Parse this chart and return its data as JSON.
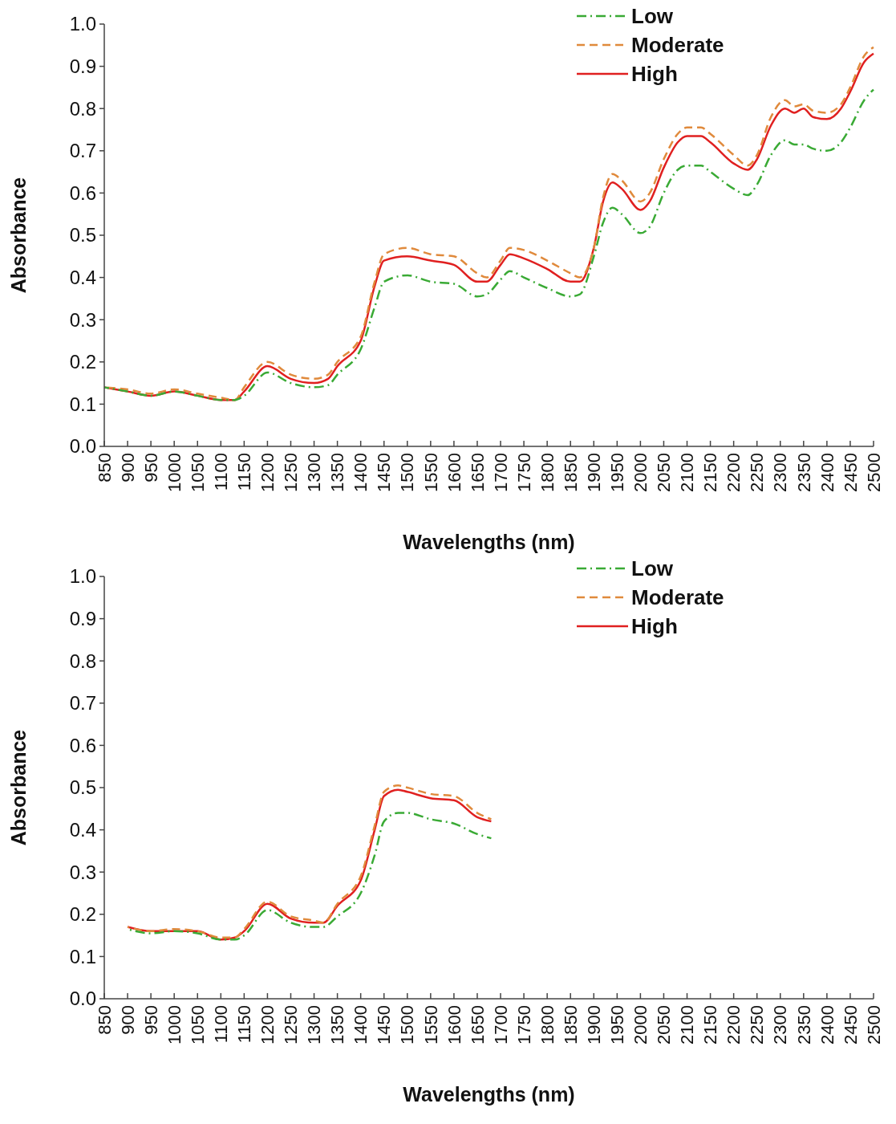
{
  "chart_data": [
    {
      "type": "line",
      "xlabel": "Wavelengths (nm)",
      "ylabel": "Absorbance",
      "xlim": [
        850,
        2500
      ],
      "ylim": [
        0,
        1
      ],
      "xticks": [
        850,
        900,
        950,
        1000,
        1050,
        1100,
        1150,
        1200,
        1250,
        1300,
        1350,
        1400,
        1450,
        1500,
        1550,
        1600,
        1650,
        1700,
        1750,
        1800,
        1850,
        1900,
        1950,
        2000,
        2050,
        2100,
        2150,
        2200,
        2250,
        2300,
        2350,
        2400,
        2450,
        2500
      ],
      "yticks": [
        {
          "value": 0,
          "label": "0.0"
        },
        {
          "value": 0.1,
          "label": "0.1"
        },
        {
          "value": 0.2,
          "label": "0.2"
        },
        {
          "value": 0.3,
          "label": "0.3"
        },
        {
          "value": 0.4,
          "label": "0.4"
        },
        {
          "value": 0.5,
          "label": "0.5"
        },
        {
          "value": 0.6,
          "label": "0.6"
        },
        {
          "value": 0.7,
          "label": "0.7"
        },
        {
          "value": 0.8,
          "label": "0.8"
        },
        {
          "value": 0.9,
          "label": "0.9"
        },
        {
          "value": 1,
          "label": "1.0"
        }
      ],
      "grid": false,
      "legend": "top right",
      "x": [
        850,
        900,
        950,
        1000,
        1050,
        1100,
        1130,
        1150,
        1200,
        1250,
        1300,
        1330,
        1350,
        1400,
        1430,
        1450,
        1500,
        1550,
        1600,
        1650,
        1670,
        1700,
        1720,
        1750,
        1800,
        1850,
        1870,
        1900,
        1920,
        1940,
        1960,
        2000,
        2020,
        2050,
        2080,
        2100,
        2130,
        2150,
        2200,
        2230,
        2250,
        2280,
        2310,
        2330,
        2350,
        2370,
        2400,
        2430,
        2450,
        2480,
        2500
      ],
      "series": [
        {
          "name": "Low",
          "color": "#3aaa35",
          "line_style": "dashdot",
          "values": [
            0.14,
            0.13,
            0.12,
            0.13,
            0.12,
            0.11,
            0.11,
            0.12,
            0.175,
            0.15,
            0.14,
            0.145,
            0.17,
            0.23,
            0.33,
            0.39,
            0.405,
            0.39,
            0.385,
            0.355,
            0.36,
            0.395,
            0.415,
            0.4,
            0.375,
            0.355,
            0.36,
            0.45,
            0.53,
            0.565,
            0.55,
            0.505,
            0.52,
            0.6,
            0.655,
            0.665,
            0.665,
            0.65,
            0.61,
            0.595,
            0.62,
            0.69,
            0.725,
            0.715,
            0.715,
            0.705,
            0.7,
            0.72,
            0.755,
            0.82,
            0.845
          ]
        },
        {
          "name": "Moderate",
          "color": "#e08a3c",
          "line_style": "dashed",
          "values": [
            0.14,
            0.135,
            0.125,
            0.135,
            0.125,
            0.115,
            0.11,
            0.14,
            0.2,
            0.17,
            0.16,
            0.17,
            0.2,
            0.26,
            0.39,
            0.455,
            0.47,
            0.455,
            0.45,
            0.41,
            0.4,
            0.44,
            0.47,
            0.465,
            0.44,
            0.41,
            0.4,
            0.47,
            0.59,
            0.645,
            0.63,
            0.58,
            0.6,
            0.68,
            0.74,
            0.755,
            0.755,
            0.74,
            0.69,
            0.665,
            0.69,
            0.78,
            0.82,
            0.805,
            0.81,
            0.795,
            0.79,
            0.81,
            0.85,
            0.925,
            0.945
          ]
        },
        {
          "name": "High",
          "color": "#e02020",
          "line_style": "solid",
          "values": [
            0.14,
            0.13,
            0.12,
            0.13,
            0.12,
            0.11,
            0.11,
            0.13,
            0.19,
            0.16,
            0.15,
            0.16,
            0.19,
            0.25,
            0.38,
            0.44,
            0.45,
            0.44,
            0.43,
            0.39,
            0.39,
            0.43,
            0.455,
            0.445,
            0.42,
            0.39,
            0.39,
            0.47,
            0.58,
            0.625,
            0.61,
            0.56,
            0.58,
            0.66,
            0.72,
            0.735,
            0.735,
            0.72,
            0.67,
            0.655,
            0.68,
            0.76,
            0.8,
            0.79,
            0.8,
            0.78,
            0.775,
            0.8,
            0.84,
            0.91,
            0.93
          ]
        }
      ]
    },
    {
      "type": "line",
      "xlabel": "Wavelengths (nm)",
      "ylabel": "Absorbance",
      "xlim": [
        850,
        2500
      ],
      "ylim": [
        0,
        1
      ],
      "xticks": [
        850,
        900,
        950,
        1000,
        1050,
        1100,
        1150,
        1200,
        1250,
        1300,
        1350,
        1400,
        1450,
        1500,
        1550,
        1600,
        1650,
        1700,
        1750,
        1800,
        1850,
        1900,
        1950,
        2000,
        2050,
        2100,
        2150,
        2200,
        2250,
        2300,
        2350,
        2400,
        2450,
        2500
      ],
      "yticks": [
        {
          "value": 0,
          "label": "0.0"
        },
        {
          "value": 0.1,
          "label": "0.1"
        },
        {
          "value": 0.2,
          "label": "0.2"
        },
        {
          "value": 0.3,
          "label": "0.3"
        },
        {
          "value": 0.4,
          "label": "0.4"
        },
        {
          "value": 0.5,
          "label": "0.5"
        },
        {
          "value": 0.6,
          "label": "0.6"
        },
        {
          "value": 0.7,
          "label": "0.7"
        },
        {
          "value": 0.8,
          "label": "0.8"
        },
        {
          "value": 0.9,
          "label": "0.9"
        },
        {
          "value": 1,
          "label": "1.0"
        }
      ],
      "grid": false,
      "legend": "top right",
      "x": [
        900,
        950,
        1000,
        1050,
        1100,
        1130,
        1150,
        1200,
        1250,
        1300,
        1320,
        1350,
        1400,
        1430,
        1450,
        1480,
        1500,
        1550,
        1600,
        1650,
        1680
      ],
      "series": [
        {
          "name": "Low",
          "color": "#3aaa35",
          "line_style": "dashdot",
          "values": [
            0.165,
            0.155,
            0.16,
            0.155,
            0.14,
            0.14,
            0.15,
            0.21,
            0.18,
            0.17,
            0.17,
            0.195,
            0.25,
            0.34,
            0.42,
            0.44,
            0.44,
            0.425,
            0.415,
            0.39,
            0.38
          ]
        },
        {
          "name": "Moderate",
          "color": "#e08a3c",
          "line_style": "dashed",
          "values": [
            0.17,
            0.16,
            0.165,
            0.16,
            0.145,
            0.145,
            0.165,
            0.23,
            0.195,
            0.185,
            0.18,
            0.225,
            0.29,
            0.41,
            0.49,
            0.505,
            0.5,
            0.485,
            0.48,
            0.44,
            0.425
          ]
        },
        {
          "name": "High",
          "color": "#e02020",
          "line_style": "solid",
          "values": [
            0.17,
            0.16,
            0.16,
            0.16,
            0.14,
            0.145,
            0.16,
            0.225,
            0.19,
            0.18,
            0.18,
            0.22,
            0.28,
            0.4,
            0.48,
            0.495,
            0.49,
            0.475,
            0.47,
            0.43,
            0.42
          ]
        }
      ]
    }
  ]
}
